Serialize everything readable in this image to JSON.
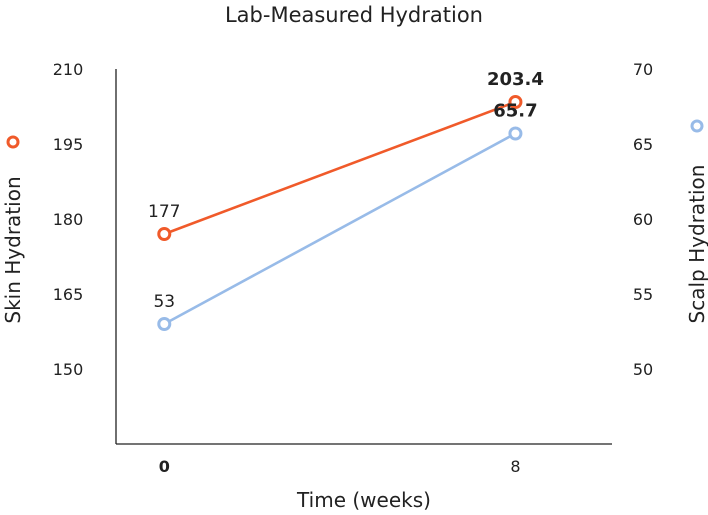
{
  "chart_data": {
    "type": "line",
    "title": "Lab-Measured Hydration",
    "xlabel": "Time (weeks)",
    "x": [
      0,
      8
    ],
    "x_tick_labels": [
      "0",
      "8"
    ],
    "xlim": [
      -1.1,
      10.2
    ],
    "left_axis": {
      "label": "Skin Hydration",
      "ylim": [
        135,
        210
      ],
      "ticks": [
        150,
        165,
        180,
        195,
        210
      ],
      "tick_labels": [
        "150",
        "165",
        "180",
        "195",
        "210"
      ]
    },
    "right_axis": {
      "label": "Scalp Hydration",
      "ylim": [
        45,
        70
      ],
      "ticks": [
        50,
        55,
        60,
        65,
        70
      ],
      "tick_labels": [
        "50",
        "55",
        "60",
        "65",
        "70"
      ]
    },
    "series": [
      {
        "name": "Skin Hydration",
        "axis": "left",
        "color": "#F05A2A",
        "values": [
          177,
          203.4
        ],
        "data_labels": [
          "177",
          "203.4"
        ]
      },
      {
        "name": "Scalp Hydration",
        "axis": "right",
        "color": "#98BBE8",
        "values": [
          53,
          65.7
        ],
        "data_labels": [
          "53",
          "65.7"
        ]
      }
    ],
    "grid": false
  }
}
